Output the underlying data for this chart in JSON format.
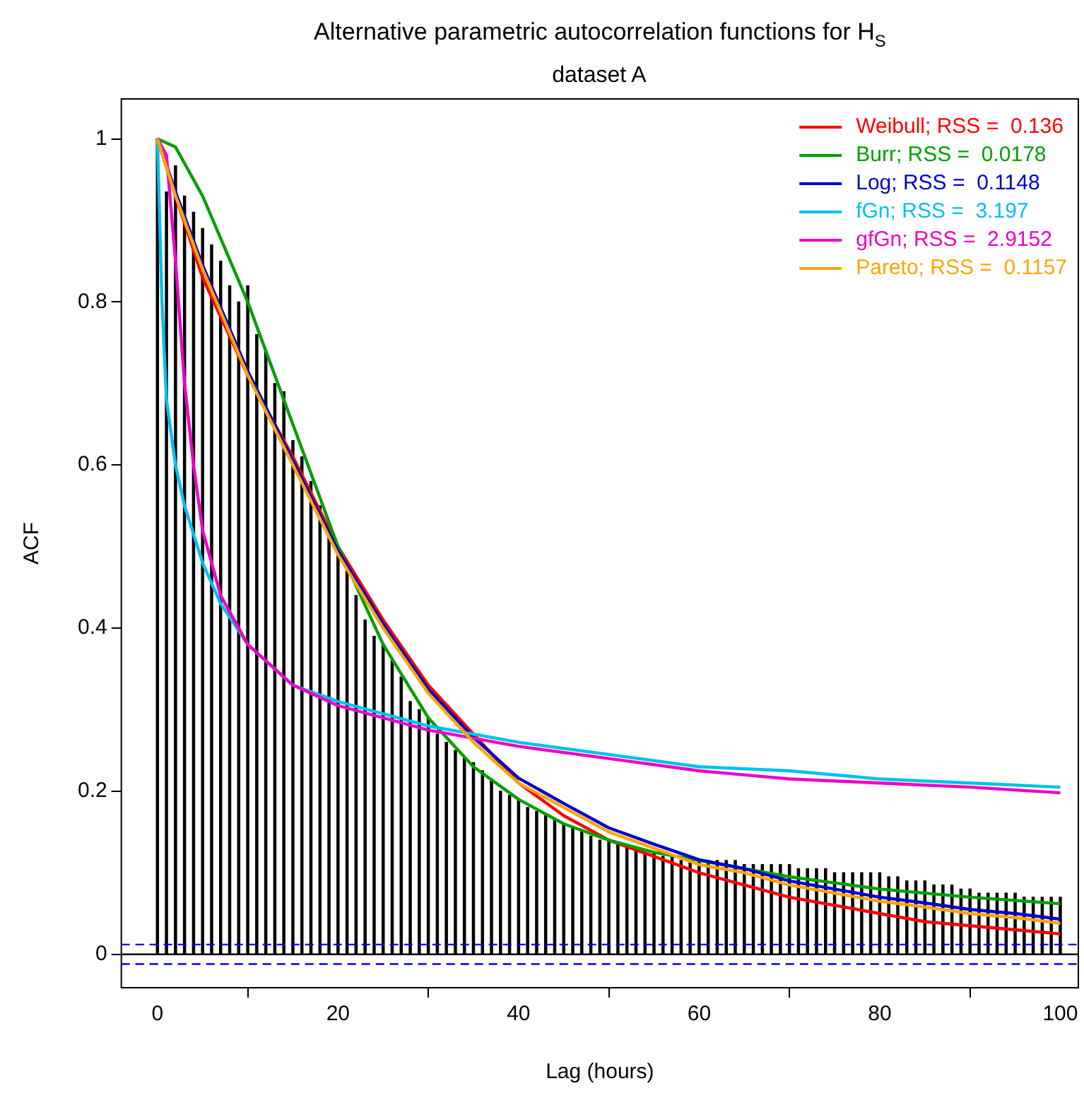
{
  "chart_data": {
    "type": "bar",
    "title": "Alternative parametric autocorrelation functions for H$_{S}$",
    "subtitle": "dataset A",
    "xlabel": "Lag (hours)",
    "ylabel": "ACF",
    "x": [
      0,
      1,
      2,
      3,
      4,
      5,
      6,
      7,
      8,
      9,
      10,
      11,
      12,
      13,
      14,
      15,
      16,
      17,
      18,
      19,
      20,
      21,
      22,
      23,
      24,
      25,
      26,
      27,
      28,
      29,
      30,
      31,
      32,
      33,
      34,
      35,
      36,
      37,
      38,
      39,
      40,
      41,
      42,
      43,
      44,
      45,
      46,
      47,
      48,
      49,
      50,
      51,
      52,
      53,
      54,
      55,
      56,
      57,
      58,
      59,
      60,
      61,
      62,
      63,
      64,
      65,
      66,
      67,
      68,
      69,
      70,
      71,
      72,
      73,
      74,
      75,
      76,
      77,
      78,
      79,
      80,
      81,
      82,
      83,
      84,
      85,
      86,
      87,
      88,
      89,
      90,
      91,
      92,
      93,
      94,
      95,
      96,
      97,
      98,
      99,
      100
    ],
    "values": [
      1,
      0.935,
      0.967,
      0.93,
      0.91,
      0.89,
      0.87,
      0.85,
      0.82,
      0.8,
      0.82,
      0.76,
      0.74,
      0.7,
      0.69,
      0.63,
      0.61,
      0.58,
      0.55,
      0.52,
      0.49,
      0.47,
      0.44,
      0.41,
      0.39,
      0.38,
      0.36,
      0.34,
      0.31,
      0.3,
      0.29,
      0.27,
      0.26,
      0.25,
      0.24,
      0.235,
      0.225,
      0.215,
      0.2,
      0.195,
      0.19,
      0.18,
      0.175,
      0.17,
      0.165,
      0.16,
      0.155,
      0.15,
      0.145,
      0.14,
      0.14,
      0.135,
      0.13,
      0.13,
      0.125,
      0.125,
      0.12,
      0.12,
      0.115,
      0.115,
      0.115,
      0.115,
      0.115,
      0.115,
      0.115,
      0.11,
      0.11,
      0.11,
      0.11,
      0.11,
      0.11,
      0.105,
      0.105,
      0.105,
      0.105,
      0.1,
      0.1,
      0.1,
      0.1,
      0.1,
      0.1,
      0.095,
      0.095,
      0.09,
      0.09,
      0.09,
      0.085,
      0.085,
      0.085,
      0.08,
      0.08,
      0.075,
      0.075,
      0.075,
      0.075,
      0.075,
      0.07,
      0.07,
      0.07,
      0.07,
      0.07
    ],
    "color": "#000000",
    "series": [
      {
        "name": "Weibull; RSS =  0.136",
        "type": "line",
        "color": "#ff0000",
        "x": [
          0,
          2,
          5,
          10,
          15,
          20,
          25,
          30,
          35,
          40,
          45,
          50,
          55,
          60,
          65,
          70,
          75,
          80,
          85,
          90,
          95,
          100
        ],
        "values": [
          1,
          0.93,
          0.83,
          0.71,
          0.61,
          0.5,
          0.41,
          0.33,
          0.27,
          0.21,
          0.17,
          0.14,
          0.12,
          0.1,
          0.085,
          0.07,
          0.06,
          0.05,
          0.04,
          0.035,
          0.03,
          0.025
        ]
      },
      {
        "name": "Burr; RSS =  0.0178",
        "type": "line",
        "color": "#00a000",
        "x": [
          0,
          2,
          5,
          10,
          15,
          20,
          25,
          30,
          35,
          40,
          45,
          50,
          55,
          60,
          65,
          70,
          80,
          90,
          100
        ],
        "values": [
          1,
          0.99,
          0.93,
          0.8,
          0.65,
          0.5,
          0.38,
          0.29,
          0.23,
          0.19,
          0.16,
          0.14,
          0.125,
          0.115,
          0.105,
          0.095,
          0.08,
          0.07,
          0.062
        ]
      },
      {
        "name": "Log; RSS =  0.1148",
        "type": "line",
        "color": "#0000cd",
        "x": [
          0,
          2,
          5,
          10,
          15,
          20,
          25,
          30,
          35,
          40,
          45,
          50,
          55,
          60,
          65,
          70,
          75,
          80,
          85,
          90,
          95,
          100
        ],
        "values": [
          1,
          0.935,
          0.845,
          0.715,
          0.605,
          0.495,
          0.405,
          0.325,
          0.266,
          0.216,
          0.185,
          0.155,
          0.135,
          0.116,
          0.105,
          0.09,
          0.08,
          0.07,
          0.063,
          0.055,
          0.05,
          0.043
        ]
      },
      {
        "name": "fGn; RSS =  3.197",
        "type": "line",
        "color": "#00c0ee",
        "x": [
          0,
          0.5,
          1,
          2,
          3,
          5,
          7,
          10,
          15,
          20,
          30,
          40,
          50,
          60,
          70,
          80,
          90,
          100
        ],
        "values": [
          1,
          0.8,
          0.68,
          0.6,
          0.55,
          0.48,
          0.43,
          0.38,
          0.33,
          0.31,
          0.28,
          0.26,
          0.245,
          0.23,
          0.225,
          0.215,
          0.21,
          0.205
        ]
      },
      {
        "name": "gfGn; RSS =  2.9152",
        "type": "line",
        "color": "#ee00cc",
        "x": [
          0,
          1,
          2,
          3,
          4,
          5,
          7,
          10,
          15,
          20,
          30,
          40,
          50,
          60,
          70,
          80,
          90,
          100
        ],
        "values": [
          1,
          0.98,
          0.85,
          0.7,
          0.6,
          0.52,
          0.44,
          0.38,
          0.33,
          0.305,
          0.275,
          0.255,
          0.24,
          0.225,
          0.215,
          0.21,
          0.205,
          0.198
        ]
      },
      {
        "name": "Pareto; RSS =  0.1157",
        "type": "line",
        "color": "#ffa500",
        "x": [
          0,
          2,
          5,
          10,
          15,
          20,
          25,
          30,
          35,
          40,
          45,
          50,
          55,
          60,
          65,
          70,
          75,
          80,
          85,
          90,
          95,
          100
        ],
        "values": [
          1,
          0.93,
          0.84,
          0.71,
          0.6,
          0.49,
          0.4,
          0.32,
          0.26,
          0.21,
          0.18,
          0.15,
          0.13,
          0.11,
          0.1,
          0.085,
          0.075,
          0.065,
          0.058,
          0.05,
          0.045,
          0.038
        ]
      }
    ],
    "ref_lines": [
      {
        "axis": "y",
        "value": 0.012,
        "color": "#0000ff",
        "line_style": "dashed"
      },
      {
        "axis": "y",
        "value": -0.012,
        "color": "#0000ff",
        "line_style": "dashed"
      },
      {
        "axis": "y",
        "value": 0,
        "color": "#000000",
        "line_style": "solid"
      }
    ],
    "xlim": [
      -4,
      102
    ],
    "xticks": [
      0,
      20,
      40,
      60,
      80,
      100
    ],
    "ylim": [
      -0.041,
      1.049
    ],
    "yticks": [
      0,
      0.2,
      0.4,
      0.6,
      0.8,
      1
    ],
    "legend": "top right",
    "grid": false,
    "line_style": "solid",
    "marker": "none"
  }
}
